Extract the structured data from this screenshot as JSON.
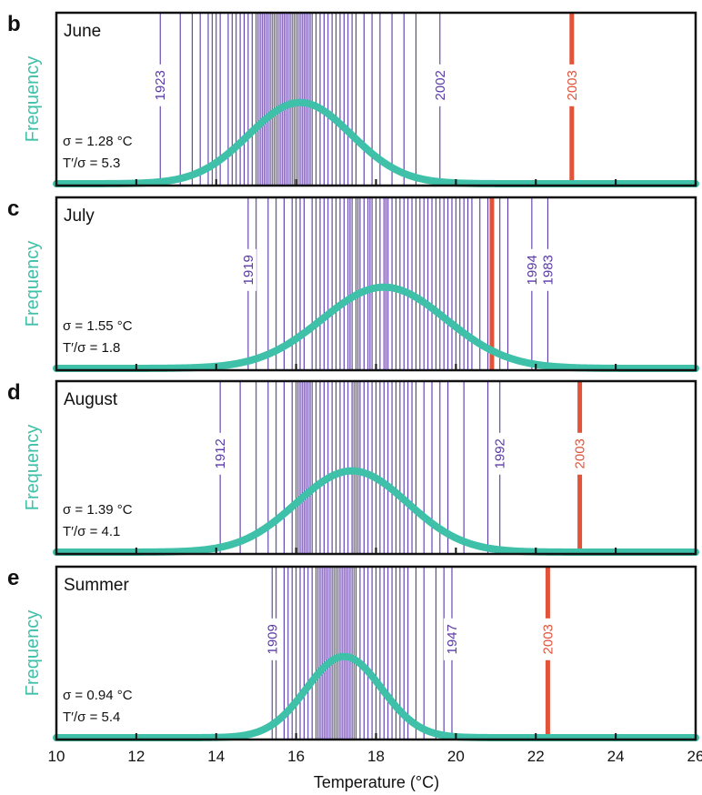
{
  "colors": {
    "fit": "#3fc0a8",
    "years": "#5b3aa8",
    "hot": "#e2533a",
    "frame": "#111111",
    "label_bg": "#ffffff"
  },
  "chart_data": {
    "type": "distribution",
    "xlabel": "Temperature (°C)",
    "ylabel": "Frequency",
    "xlim": [
      10,
      26
    ],
    "xticks": [
      "10",
      "12",
      "14",
      "16",
      "18",
      "20",
      "22",
      "24",
      "26"
    ],
    "panels": [
      {
        "letter": "b",
        "name": "June",
        "sigma_text": "σ = 1.28 °C",
        "ratio_text": "T′/σ = 5.3",
        "mean": 16.1,
        "sd": 1.28,
        "hot_year": {
          "label": "2003",
          "value": 22.9
        },
        "labeled_years": [
          {
            "label": "1923",
            "value": 12.6
          },
          {
            "label": "2002",
            "value": 19.6
          }
        ],
        "years": [
          12.6,
          13.1,
          13.4,
          13.6,
          13.8,
          13.9,
          14.0,
          14.1,
          14.3,
          14.4,
          14.5,
          14.6,
          14.7,
          14.8,
          14.9,
          15.0,
          15.05,
          15.1,
          15.15,
          15.2,
          15.25,
          15.3,
          15.35,
          15.4,
          15.45,
          15.5,
          15.55,
          15.6,
          15.65,
          15.7,
          15.75,
          15.8,
          15.85,
          15.9,
          15.95,
          16.0,
          16.05,
          16.1,
          16.15,
          16.2,
          16.25,
          16.3,
          16.35,
          16.4,
          16.5,
          16.6,
          16.7,
          16.8,
          16.9,
          17.0,
          17.1,
          17.2,
          17.3,
          17.4,
          17.5,
          17.7,
          17.9,
          18.1,
          18.4,
          18.7,
          19.0,
          19.6
        ]
      },
      {
        "letter": "c",
        "name": "July",
        "sigma_text": "σ = 1.55 °C",
        "ratio_text": "T′/σ = 1.8",
        "mean": 18.2,
        "sd": 1.55,
        "hot_year": {
          "label": "",
          "value": 20.9
        },
        "labeled_years": [
          {
            "label": "1919",
            "value": 14.8
          },
          {
            "label": "1994",
            "value": 21.9
          },
          {
            "label": "1983",
            "value": 22.3
          }
        ],
        "years": [
          14.8,
          15.0,
          15.3,
          15.5,
          15.7,
          15.9,
          16.0,
          16.1,
          16.2,
          16.4,
          16.5,
          16.6,
          16.7,
          16.8,
          16.9,
          17.0,
          17.1,
          17.2,
          17.3,
          17.35,
          17.4,
          17.5,
          17.55,
          17.6,
          17.7,
          17.8,
          17.85,
          17.9,
          18.0,
          18.1,
          18.2,
          18.25,
          18.3,
          18.4,
          18.5,
          18.6,
          18.7,
          18.8,
          18.9,
          19.0,
          19.1,
          19.2,
          19.3,
          19.4,
          19.5,
          19.6,
          19.7,
          19.8,
          19.9,
          20.0,
          20.1,
          20.2,
          20.3,
          20.4,
          20.6,
          20.8,
          21.1,
          21.3,
          21.9,
          22.3
        ]
      },
      {
        "letter": "d",
        "name": "August",
        "sigma_text": "σ = 1.39 °C",
        "ratio_text": "T′/σ = 4.1",
        "mean": 17.4,
        "sd": 1.39,
        "hot_year": {
          "label": "2003",
          "value": 23.1
        },
        "labeled_years": [
          {
            "label": "1912",
            "value": 14.1
          },
          {
            "label": "1992",
            "value": 21.1
          }
        ],
        "years": [
          14.1,
          14.6,
          15.0,
          15.3,
          15.5,
          15.7,
          15.9,
          16.0,
          16.05,
          16.1,
          16.15,
          16.2,
          16.25,
          16.3,
          16.35,
          16.4,
          16.5,
          16.6,
          16.7,
          16.8,
          16.9,
          17.0,
          17.1,
          17.2,
          17.3,
          17.4,
          17.45,
          17.5,
          17.55,
          17.6,
          17.7,
          17.8,
          17.9,
          18.0,
          18.1,
          18.2,
          18.3,
          18.4,
          18.5,
          18.6,
          18.7,
          18.8,
          18.9,
          19.0,
          19.2,
          19.4,
          19.6,
          19.8,
          20.2,
          20.8,
          21.1
        ]
      },
      {
        "letter": "e",
        "name": "Summer",
        "sigma_text": "σ = 0.94 °C",
        "ratio_text": "T′/σ = 5.4",
        "mean": 17.2,
        "sd": 0.94,
        "hot_year": {
          "label": "2003",
          "value": 22.3
        },
        "labeled_years": [
          {
            "label": "1909",
            "value": 15.4
          },
          {
            "label": "1947",
            "value": 19.9
          }
        ],
        "years": [
          15.4,
          15.5,
          15.7,
          15.8,
          15.9,
          16.0,
          16.1,
          16.2,
          16.3,
          16.4,
          16.5,
          16.55,
          16.6,
          16.65,
          16.7,
          16.75,
          16.8,
          16.85,
          16.9,
          16.95,
          17.0,
          17.05,
          17.1,
          17.15,
          17.2,
          17.25,
          17.3,
          17.35,
          17.4,
          17.45,
          17.5,
          17.6,
          17.7,
          17.8,
          17.9,
          18.0,
          18.1,
          18.2,
          18.3,
          18.4,
          18.5,
          18.6,
          18.7,
          18.8,
          19.0,
          19.2,
          19.5,
          19.7,
          19.9
        ]
      }
    ]
  }
}
